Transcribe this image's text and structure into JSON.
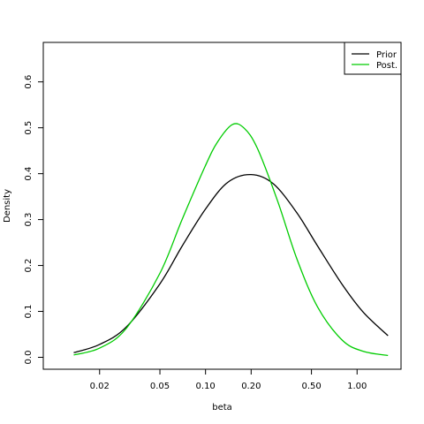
{
  "chart_data": {
    "type": "line",
    "xlabel": "beta",
    "ylabel": "Density",
    "x_scale": "log",
    "xlim": [
      0.0085,
      1.95
    ],
    "ylim": [
      -0.026,
      0.686
    ],
    "x_ticks": [
      0.02,
      0.05,
      0.1,
      0.2,
      0.5,
      1.0
    ],
    "x_tick_labels": [
      "0.02",
      "0.05",
      "0.10",
      "0.20",
      "0.50",
      "1.00"
    ],
    "y_ticks": [
      0.0,
      0.1,
      0.2,
      0.3,
      0.4,
      0.5,
      0.6
    ],
    "y_tick_labels": [
      "0.0",
      "0.1",
      "0.2",
      "0.3",
      "0.4",
      "0.5",
      "0.6"
    ],
    "grid": false,
    "legend_position": "top-right",
    "series": [
      {
        "name": "Prior",
        "color": "#000000",
        "x": [
          0.0135,
          0.02,
          0.03,
          0.05,
          0.07,
          0.1,
          0.14,
          0.2,
          0.28,
          0.4,
          0.55,
          0.8,
          1.1,
          1.6
        ],
        "y": [
          0.01,
          0.028,
          0.066,
          0.16,
          0.242,
          0.323,
          0.381,
          0.398,
          0.378,
          0.315,
          0.242,
          0.158,
          0.098,
          0.047
        ]
      },
      {
        "name": "Post.",
        "color": "#00cc00",
        "x": [
          0.0135,
          0.02,
          0.03,
          0.05,
          0.07,
          0.1,
          0.12,
          0.15,
          0.18,
          0.22,
          0.3,
          0.4,
          0.55,
          0.8,
          1.1,
          1.6
        ],
        "y": [
          0.005,
          0.02,
          0.063,
          0.183,
          0.3,
          0.418,
          0.469,
          0.507,
          0.499,
          0.455,
          0.339,
          0.215,
          0.109,
          0.037,
          0.013,
          0.004
        ]
      }
    ]
  }
}
